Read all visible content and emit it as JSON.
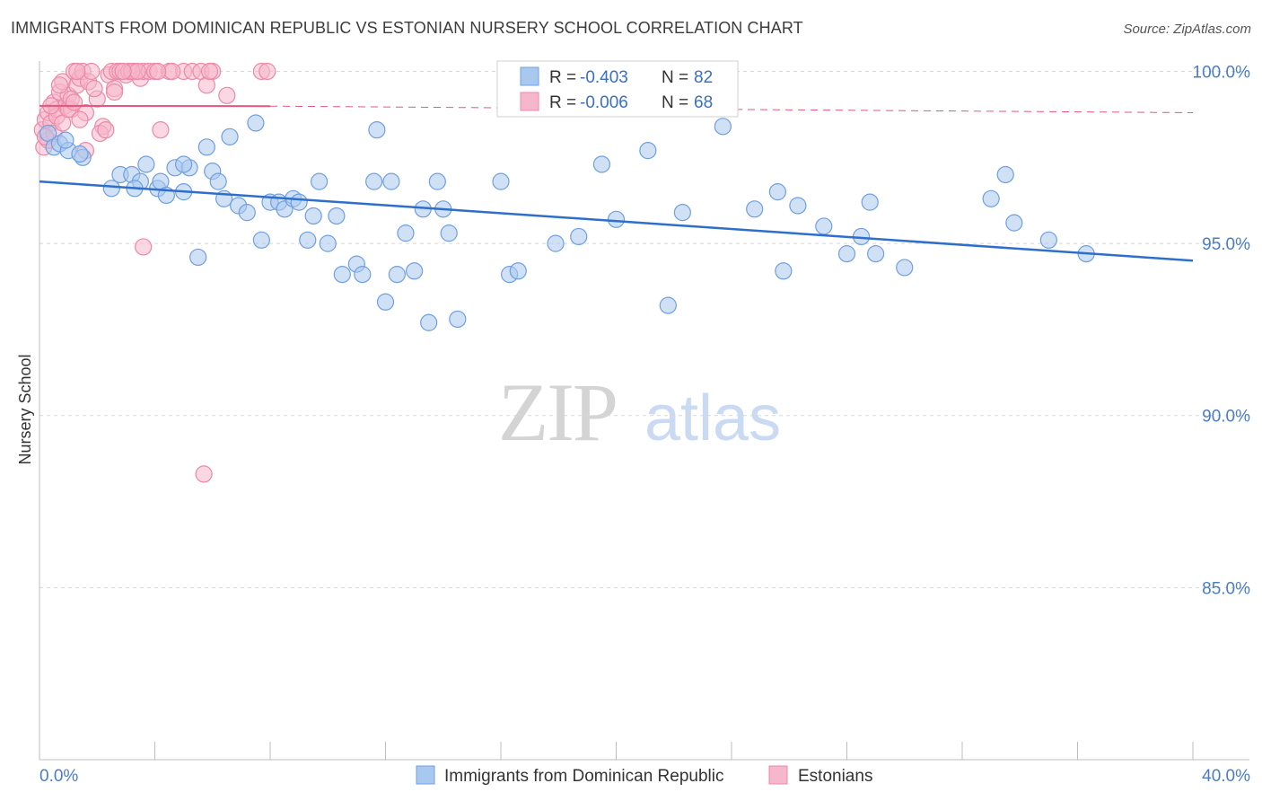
{
  "title": "IMMIGRANTS FROM DOMINICAN REPUBLIC VS ESTONIAN NURSERY SCHOOL CORRELATION CHART",
  "source": "Source: ZipAtlas.com",
  "watermark": {
    "zip": "ZIP",
    "atlas": "atlas"
  },
  "colors": {
    "blue_fill": "#a9c8ef",
    "blue_stroke": "#6f9fe0",
    "blue_line": "#2f6fcc",
    "pink_fill": "#f6b6cb",
    "pink_stroke": "#ec89a8",
    "pink_line": "#e8557e",
    "tick_text": "#4a7cc8",
    "grid": "#d8d8d8"
  },
  "legend_top": {
    "rows": [
      {
        "r_label": "R = ",
        "r_value": "-0.403",
        "n_label": "N = ",
        "n_value": "82",
        "color": "blue"
      },
      {
        "r_label": "R = ",
        "r_value": "-0.006",
        "n_label": "N = ",
        "n_value": "68",
        "color": "pink"
      }
    ]
  },
  "legend_bottom": {
    "items": [
      {
        "label": "Immigrants from Dominican Republic",
        "color": "blue"
      },
      {
        "label": "Estonians",
        "color": "pink"
      }
    ]
  },
  "chart_data": {
    "type": "scatter",
    "title": "IMMIGRANTS FROM DOMINICAN REPUBLIC VS ESTONIAN NURSERY SCHOOL CORRELATION CHART",
    "xlabel": "",
    "ylabel": "Nursery School",
    "xlim": [
      0,
      40
    ],
    "ylim": [
      80.0,
      100.3
    ],
    "x_tick_labels": [
      "0.0%",
      "40.0%"
    ],
    "y_ticks": [
      85,
      90,
      95,
      100
    ],
    "y_tick_labels": [
      "85.0%",
      "90.0%",
      "95.0%",
      "100.0%"
    ],
    "grid": true,
    "legend_position": "top-center",
    "series": [
      {
        "name": "Immigrants from Dominican Republic",
        "color": "blue",
        "trend": {
          "x": [
            0,
            40
          ],
          "y": [
            96.8,
            94.5
          ]
        },
        "points": [
          [
            0.3,
            98.2
          ],
          [
            0.5,
            97.8
          ],
          [
            0.7,
            97.9
          ],
          [
            1.0,
            97.7
          ],
          [
            1.5,
            97.5
          ],
          [
            1.4,
            97.6
          ],
          [
            2.8,
            97.0
          ],
          [
            3.2,
            97.0
          ],
          [
            2.5,
            96.6
          ],
          [
            3.5,
            96.8
          ],
          [
            3.3,
            96.6
          ],
          [
            3.7,
            97.3
          ],
          [
            4.1,
            96.6
          ],
          [
            4.2,
            96.8
          ],
          [
            4.4,
            96.4
          ],
          [
            4.7,
            97.2
          ],
          [
            5.0,
            96.5
          ],
          [
            5.2,
            97.2
          ],
          [
            5.5,
            94.6
          ],
          [
            5.8,
            97.8
          ],
          [
            6.0,
            97.1
          ],
          [
            6.2,
            96.8
          ],
          [
            6.4,
            96.3
          ],
          [
            6.6,
            98.1
          ],
          [
            6.9,
            96.1
          ],
          [
            7.2,
            95.9
          ],
          [
            7.5,
            98.5
          ],
          [
            7.7,
            95.1
          ],
          [
            8.0,
            96.2
          ],
          [
            8.3,
            96.2
          ],
          [
            8.5,
            96.0
          ],
          [
            8.8,
            96.3
          ],
          [
            9.0,
            96.2
          ],
          [
            9.3,
            95.1
          ],
          [
            9.5,
            95.8
          ],
          [
            9.7,
            96.8
          ],
          [
            10.0,
            95.0
          ],
          [
            10.3,
            95.8
          ],
          [
            10.5,
            94.1
          ],
          [
            11.0,
            94.4
          ],
          [
            11.2,
            94.1
          ],
          [
            11.6,
            96.8
          ],
          [
            11.7,
            98.3
          ],
          [
            12.0,
            93.3
          ],
          [
            12.2,
            96.8
          ],
          [
            12.4,
            94.1
          ],
          [
            12.7,
            95.3
          ],
          [
            13.0,
            94.2
          ],
          [
            13.3,
            96.0
          ],
          [
            13.5,
            92.7
          ],
          [
            13.8,
            96.8
          ],
          [
            14.0,
            96.0
          ],
          [
            14.2,
            95.3
          ],
          [
            14.5,
            92.8
          ],
          [
            16.0,
            96.8
          ],
          [
            16.3,
            94.1
          ],
          [
            16.6,
            94.2
          ],
          [
            17.9,
            95.0
          ],
          [
            18.7,
            95.2
          ],
          [
            19.5,
            97.3
          ],
          [
            20.0,
            95.7
          ],
          [
            21.1,
            97.7
          ],
          [
            21.8,
            93.2
          ],
          [
            22.3,
            95.9
          ],
          [
            23.7,
            98.4
          ],
          [
            24.8,
            96.0
          ],
          [
            25.6,
            96.5
          ],
          [
            25.8,
            94.2
          ],
          [
            26.3,
            96.1
          ],
          [
            27.2,
            95.5
          ],
          [
            28.0,
            94.7
          ],
          [
            28.5,
            95.2
          ],
          [
            28.8,
            96.2
          ],
          [
            29.0,
            94.7
          ],
          [
            30.0,
            94.3
          ],
          [
            33.0,
            96.3
          ],
          [
            33.5,
            97.0
          ],
          [
            33.8,
            95.6
          ],
          [
            35.0,
            95.1
          ],
          [
            36.3,
            94.7
          ],
          [
            5.0,
            97.3
          ],
          [
            0.9,
            98.0
          ]
        ]
      },
      {
        "name": "Estonians",
        "color": "pink",
        "trend": {
          "x": [
            0,
            8
          ],
          "y": [
            99.0,
            98.99
          ]
        },
        "trend_extension": {
          "x": [
            8,
            40
          ],
          "y": [
            98.99,
            98.8
          ]
        },
        "points": [
          [
            0.1,
            98.3
          ],
          [
            0.2,
            98.6
          ],
          [
            0.3,
            98.8
          ],
          [
            0.4,
            98.5
          ],
          [
            0.5,
            99.1
          ],
          [
            0.6,
            98.9
          ],
          [
            0.7,
            99.4
          ],
          [
            0.8,
            99.7
          ],
          [
            0.9,
            99.0
          ],
          [
            1.0,
            99.3
          ],
          [
            1.1,
            98.9
          ],
          [
            1.2,
            100.0
          ],
          [
            1.3,
            99.6
          ],
          [
            1.4,
            99.8
          ],
          [
            1.5,
            100.0
          ],
          [
            1.6,
            98.8
          ],
          [
            1.7,
            99.7
          ],
          [
            1.8,
            100.0
          ],
          [
            2.0,
            99.2
          ],
          [
            2.2,
            98.4
          ],
          [
            2.4,
            99.9
          ],
          [
            2.5,
            100.0
          ],
          [
            2.6,
            99.5
          ],
          [
            2.7,
            100.0
          ],
          [
            2.8,
            100.0
          ],
          [
            3.0,
            99.9
          ],
          [
            3.1,
            100.0
          ],
          [
            3.3,
            100.0
          ],
          [
            3.5,
            99.8
          ],
          [
            3.6,
            100.0
          ],
          [
            3.8,
            100.0
          ],
          [
            4.0,
            100.0
          ],
          [
            4.2,
            98.3
          ],
          [
            4.5,
            100.0
          ],
          [
            5.0,
            100.0
          ],
          [
            5.3,
            100.0
          ],
          [
            5.6,
            100.0
          ],
          [
            5.8,
            99.6
          ],
          [
            6.0,
            100.0
          ],
          [
            6.5,
            99.3
          ],
          [
            7.7,
            100.0
          ],
          [
            7.9,
            100.0
          ],
          [
            0.15,
            97.8
          ],
          [
            0.3,
            98.0
          ],
          [
            0.5,
            98.2
          ],
          [
            0.6,
            98.7
          ],
          [
            0.8,
            98.5
          ],
          [
            1.0,
            98.9
          ],
          [
            1.1,
            99.2
          ],
          [
            1.2,
            99.1
          ],
          [
            1.4,
            98.6
          ],
          [
            1.6,
            97.7
          ],
          [
            1.9,
            99.5
          ],
          [
            2.1,
            98.2
          ],
          [
            2.3,
            98.3
          ],
          [
            2.6,
            99.4
          ],
          [
            3.2,
            100.0
          ],
          [
            3.4,
            100.0
          ],
          [
            4.6,
            100.0
          ],
          [
            5.9,
            100.0
          ],
          [
            3.6,
            94.9
          ],
          [
            5.7,
            88.3
          ],
          [
            0.4,
            99.0
          ],
          [
            0.7,
            99.6
          ],
          [
            1.3,
            100.0
          ],
          [
            2.9,
            100.0
          ],
          [
            4.1,
            100.0
          ],
          [
            0.2,
            98.1
          ]
        ]
      }
    ]
  }
}
